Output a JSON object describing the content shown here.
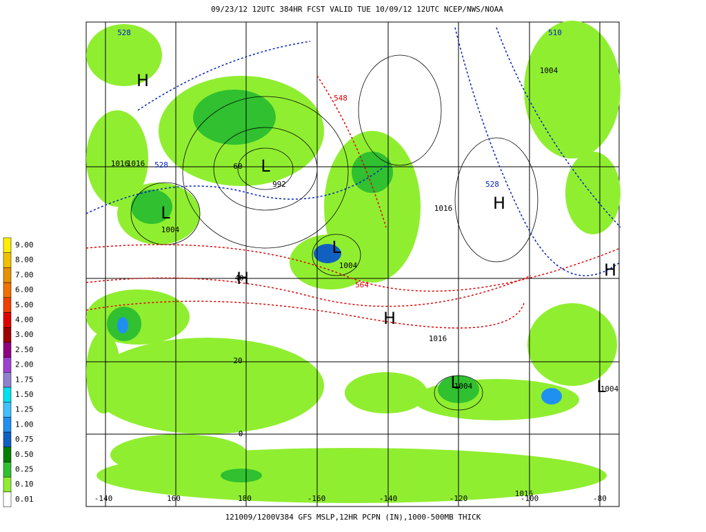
{
  "header": {
    "title": "09/23/12 12UTC  384HR  FCST VALID TUE 10/09/12 12UTC  NCEP/NWS/NOAA"
  },
  "footer": {
    "caption": "121009/1200V384 GFS MSLP,12HR PCPN (IN),1000-500MB THICK"
  },
  "legend": {
    "items": [
      {
        "label": "9.00",
        "color": "#ffee00"
      },
      {
        "label": "8.00",
        "color": "#f0c000"
      },
      {
        "label": "7.00",
        "color": "#e89000"
      },
      {
        "label": "6.00",
        "color": "#f07000"
      },
      {
        "label": "5.00",
        "color": "#f04000"
      },
      {
        "label": "4.00",
        "color": "#e00000"
      },
      {
        "label": "3.00",
        "color": "#a00000"
      },
      {
        "label": "2.50",
        "color": "#900080"
      },
      {
        "label": "2.00",
        "color": "#a040d0"
      },
      {
        "label": "1.75",
        "color": "#9080d0"
      },
      {
        "label": "1.50",
        "color": "#00e0f0"
      },
      {
        "label": "1.25",
        "color": "#40c0ff"
      },
      {
        "label": "1.00",
        "color": "#2090f0"
      },
      {
        "label": "0.75",
        "color": "#1060c0"
      },
      {
        "label": "0.50",
        "color": "#008000"
      },
      {
        "label": "0.25",
        "color": "#30c030"
      },
      {
        "label": "0.10",
        "color": "#90ee30"
      },
      {
        "label": "0.01",
        "color": "#ffffff"
      }
    ]
  },
  "map": {
    "lon_labels": [
      "-140",
      "160",
      "180",
      "-160",
      "-140",
      "-120",
      "-100",
      "-80"
    ],
    "lat_labels": [
      "60",
      "40",
      "20",
      "0"
    ],
    "systems": [
      "H",
      "L",
      "L",
      "H",
      "L",
      "H",
      "H",
      "H",
      "L",
      "L"
    ],
    "isobar_labels": [
      "992",
      "1016",
      "1004",
      "1016",
      "1004",
      "1016",
      "1004",
      "1004",
      "1004",
      "1016",
      "1016"
    ],
    "thickness_labels": [
      "528",
      "510",
      "528",
      "528",
      "548",
      "564"
    ]
  }
}
